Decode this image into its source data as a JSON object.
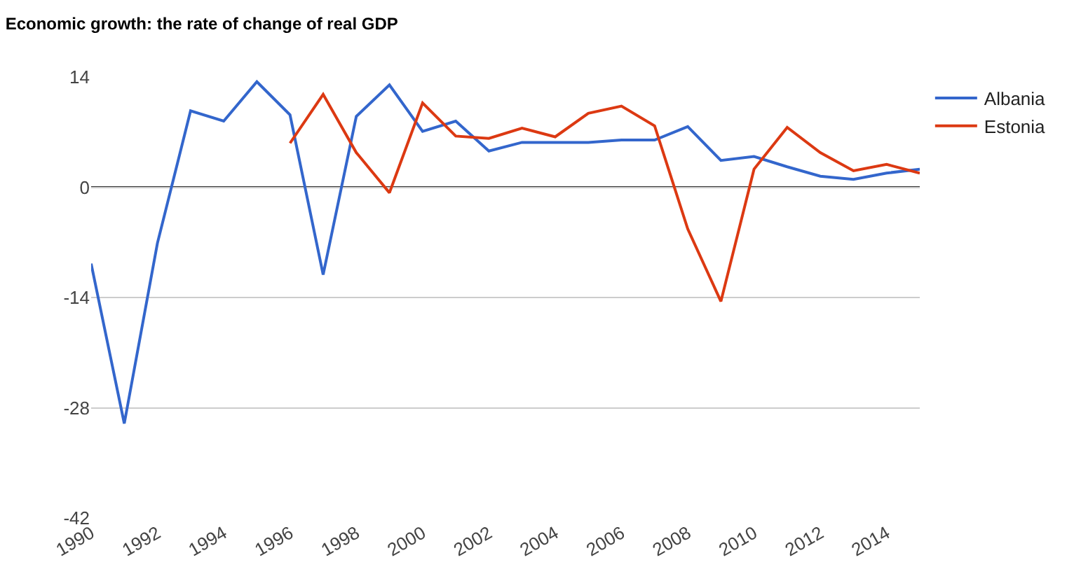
{
  "chart_data": {
    "type": "line",
    "title": "Economic growth: the rate of change of real GDP",
    "x": [
      1990,
      1991,
      1992,
      1993,
      1994,
      1995,
      1996,
      1997,
      1998,
      1999,
      2000,
      2001,
      2002,
      2003,
      2004,
      2005,
      2006,
      2007,
      2008,
      2009,
      2010,
      2011,
      2012,
      2013,
      2014,
      2015
    ],
    "series": [
      {
        "name": "Albania",
        "color": "#3366cc",
        "values": [
          -9.7,
          -30,
          -7.1,
          9.7,
          8.4,
          13.4,
          9.2,
          -11.1,
          9.0,
          13.0,
          7.1,
          8.4,
          4.6,
          5.7,
          5.7,
          5.7,
          6.0,
          6.0,
          7.7,
          3.4,
          3.9,
          2.6,
          1.4,
          1.0,
          1.8,
          2.3
        ]
      },
      {
        "name": "Estonia",
        "color": "#dc3912",
        "values": [
          null,
          null,
          null,
          null,
          null,
          null,
          5.6,
          11.8,
          4.4,
          -0.7,
          10.7,
          6.5,
          6.2,
          7.5,
          6.4,
          9.4,
          10.3,
          7.8,
          -5.3,
          -14.5,
          2.3,
          7.6,
          4.4,
          2.1,
          2.9,
          1.8
        ]
      }
    ],
    "xlim": [
      1990,
      2015
    ],
    "xticks": [
      1990,
      1992,
      1994,
      1996,
      1998,
      2000,
      2002,
      2004,
      2006,
      2008,
      2010,
      2012,
      2014
    ],
    "ylim": [
      -42,
      14
    ],
    "yticks": [
      -42,
      -28,
      -14,
      0,
      14
    ],
    "ref_lines": [
      {
        "axis": "y",
        "value": 0,
        "color": "#333333"
      }
    ],
    "grid": "y",
    "legend": "right",
    "marker": "none",
    "line_style": "solid"
  }
}
